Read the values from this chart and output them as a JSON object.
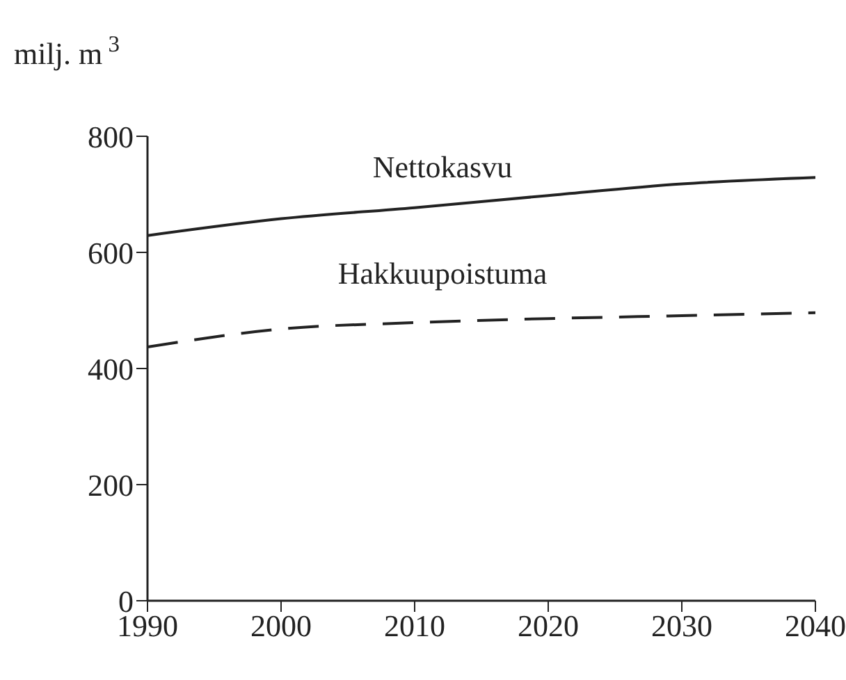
{
  "chart_data": {
    "type": "line",
    "ylabel": "milj. m$^{3}$",
    "x": [
      1990,
      2000,
      2010,
      2020,
      2030,
      2040
    ],
    "series": [
      {
        "name": "Nettokasvu",
        "color": "#222222",
        "line_style": "solid",
        "values": [
          629,
          658,
          677,
          698,
          718,
          729
        ]
      },
      {
        "name": "Hakkuupoistuma",
        "color": "#222222",
        "line_style": "dashed",
        "values": [
          437,
          468,
          479,
          486,
          491,
          496
        ]
      }
    ],
    "xlim": [
      1990,
      2040
    ],
    "xticks": [
      1990,
      2000,
      2010,
      2020,
      2030,
      2040
    ],
    "ylim": [
      0,
      800
    ],
    "yticks": [
      0,
      200,
      400,
      600,
      800
    ],
    "grid": false,
    "legend": false,
    "marker": "none"
  }
}
